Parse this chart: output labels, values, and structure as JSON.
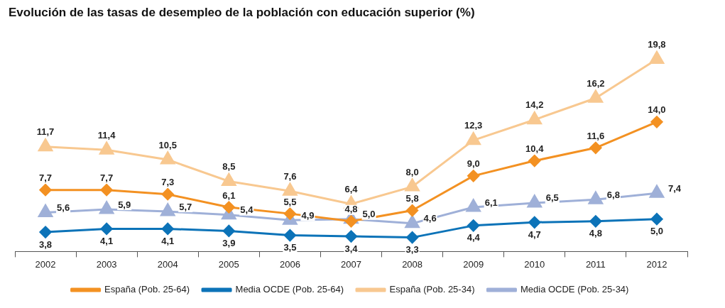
{
  "chart_data": {
    "type": "line",
    "title": "Evolución de las tasas de desempleo de la población con educación superior (%)",
    "categories": [
      "2002",
      "2003",
      "2004",
      "2005",
      "2006",
      "2007",
      "2008",
      "2009",
      "2010",
      "2011",
      "2012"
    ],
    "series": [
      {
        "name": "España (Pob. 25-64)",
        "color": "#f39122",
        "marker": "diamond",
        "values": [
          7.7,
          7.7,
          7.3,
          6.1,
          5.5,
          4.8,
          5.8,
          9.0,
          10.4,
          11.6,
          14.0
        ],
        "value_labels": [
          "7,7",
          "7,7",
          "7,3",
          "6,1",
          "5,5",
          "4,8",
          "5,8",
          "9,0",
          "10,4",
          "11,6",
          "14,0"
        ]
      },
      {
        "name": "Media OCDE (Pob. 25-64)",
        "color": "#0c73b8",
        "marker": "diamond",
        "values": [
          3.8,
          4.1,
          4.1,
          3.9,
          3.5,
          3.4,
          3.3,
          4.4,
          4.7,
          4.8,
          5.0
        ],
        "value_labels": [
          "3,8",
          "4,1",
          "4,1",
          "3,9",
          "3,5",
          "3,4",
          "3,3",
          "4,4",
          "4,7",
          "4,8",
          "5,0"
        ]
      },
      {
        "name": "España (Pob. 25-34)",
        "color": "#f8c890",
        "marker": "triangle",
        "values": [
          11.7,
          11.4,
          10.5,
          8.5,
          7.6,
          6.4,
          8.0,
          12.3,
          14.2,
          16.2,
          19.8
        ],
        "value_labels": [
          "11,7",
          "11,4",
          "10,5",
          "8,5",
          "7,6",
          "6,4",
          "8,0",
          "12,3",
          "14,2",
          "16,2",
          "19,8"
        ]
      },
      {
        "name": "Media OCDE (Pob. 25-34)",
        "color": "#9fb0d8",
        "marker": "triangle",
        "values": [
          5.6,
          5.9,
          5.7,
          5.4,
          4.9,
          5.0,
          4.6,
          6.1,
          6.5,
          6.8,
          7.4
        ],
        "value_labels": [
          "5,6",
          "5,9",
          "5,7",
          "5,4",
          "4,9",
          "5,0",
          "4,6",
          "6,1",
          "6,5",
          "6,8",
          "7,4"
        ]
      }
    ],
    "legend": "bottom",
    "line_style": "solid"
  }
}
